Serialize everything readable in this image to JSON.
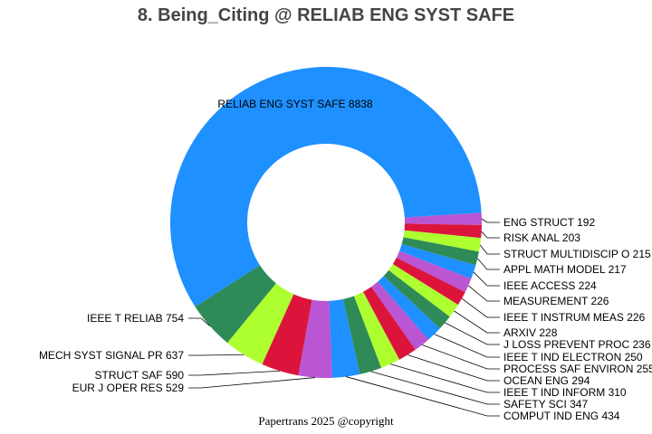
{
  "title": "8. Being_Citing @ RELIAB ENG SYST SAFE",
  "footer": "Papertrans 2025 @copyright",
  "chart_data": {
    "type": "pie",
    "hole": 0.5,
    "title": "8. Being_Citing @ RELIAB ENG SYST SAFE",
    "labels": [
      "RELIAB ENG SYST SAFE",
      "IEEE T RELIAB",
      "MECH SYST SIGNAL PR",
      "STRUCT SAF",
      "EUR J OPER RES",
      "COMPUT IND ENG",
      "SAFETY SCI",
      "IEEE T IND INFORM",
      "OCEAN ENG",
      "PROCESS SAF ENVIRON",
      "IEEE T IND ELECTRON",
      "J LOSS PREVENT PROC",
      "ARXIV",
      "IEEE T INSTRUM MEAS",
      "MEASUREMENT",
      "IEEE ACCESS",
      "APPL MATH MODEL",
      "STRUCT MULTIDISCIP O",
      "RISK ANAL",
      "ENG STRUCT"
    ],
    "values": [
      8838,
      754,
      637,
      590,
      529,
      434,
      347,
      310,
      294,
      255,
      250,
      236,
      228,
      226,
      226,
      224,
      217,
      215,
      203,
      192
    ],
    "colors": [
      "#1E90FF",
      "#2E8B57",
      "#ADFF2F",
      "#DC143C",
      "#BA55D3",
      "#1E90FF",
      "#2E8B57",
      "#ADFF2F",
      "#DC143C",
      "#BA55D3",
      "#1E90FF",
      "#2E8B57",
      "#ADFF2F",
      "#DC143C",
      "#BA55D3",
      "#1E90FF",
      "#2E8B57",
      "#ADFF2F",
      "#DC143C",
      "#BA55D3"
    ],
    "legend": "none",
    "text_info": "label+value"
  }
}
